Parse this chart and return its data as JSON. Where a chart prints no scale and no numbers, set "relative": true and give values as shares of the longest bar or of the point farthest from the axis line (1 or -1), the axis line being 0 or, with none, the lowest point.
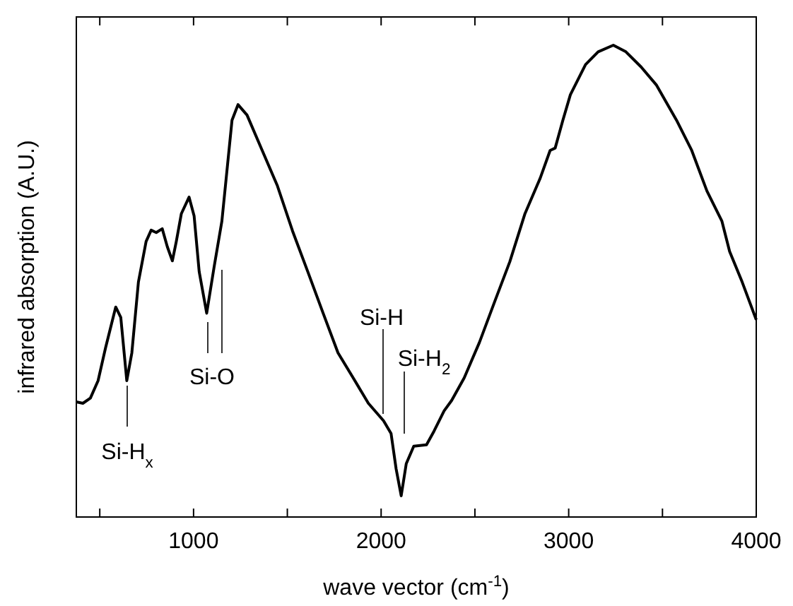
{
  "chart_data": {
    "type": "line",
    "relative": true,
    "xlabel": "wave vector (cm$^{-1}$)",
    "ylabel": "infrared absorption (A.U.)",
    "xlim": [
      375,
      4000
    ],
    "xticks": [
      {
        "value": 500,
        "label": null
      },
      1000,
      {
        "value": 1500,
        "label": null
      },
      2000,
      {
        "value": 2500,
        "label": null
      },
      3000,
      {
        "value": 3500,
        "label": null
      },
      4000
    ],
    "tick_labels": "x",
    "line_style": "solid",
    "x": [
      375,
      410,
      450,
      491,
      531,
      585,
      612,
      644,
      671,
      706,
      747,
      774,
      801,
      833,
      860,
      887,
      908,
      935,
      976,
      1003,
      1030,
      1070,
      1110,
      1151,
      1205,
      1237,
      1285,
      1366,
      1447,
      1528,
      1609,
      1689,
      1770,
      1851,
      1932,
      2013,
      2053,
      2080,
      2107,
      2134,
      2174,
      2242,
      2282,
      2336,
      2376,
      2443,
      2524,
      2605,
      2686,
      2767,
      2848,
      2901,
      2928,
      2969,
      3009,
      3090,
      3157,
      3238,
      3305,
      3386,
      3467,
      3575,
      3656,
      3737,
      3817,
      3858,
      3925,
      4000
    ],
    "series": [
      {
        "color": "#000000",
        "values": [
          0.244,
          0.241,
          0.252,
          0.289,
          0.359,
          0.445,
          0.423,
          0.289,
          0.348,
          0.498,
          0.584,
          0.608,
          0.603,
          0.611,
          0.573,
          0.543,
          0.584,
          0.643,
          0.678,
          0.638,
          0.52,
          0.432,
          0.531,
          0.627,
          0.841,
          0.874,
          0.852,
          0.777,
          0.702,
          0.606,
          0.52,
          0.434,
          0.348,
          0.295,
          0.241,
          0.204,
          0.177,
          0.102,
          0.045,
          0.113,
          0.15,
          0.153,
          0.182,
          0.225,
          0.247,
          0.295,
          0.37,
          0.456,
          0.541,
          0.643,
          0.718,
          0.777,
          0.782,
          0.841,
          0.895,
          0.959,
          0.986,
          1,
          0.986,
          0.954,
          0.916,
          0.841,
          0.777,
          0.691,
          0.627,
          0.563,
          0.498,
          0.418
        ]
      }
    ],
    "annotations": [
      "Si-H$_{x}$",
      "Si-O",
      "Si-H",
      "Si-H$_{2}$"
    ]
  }
}
